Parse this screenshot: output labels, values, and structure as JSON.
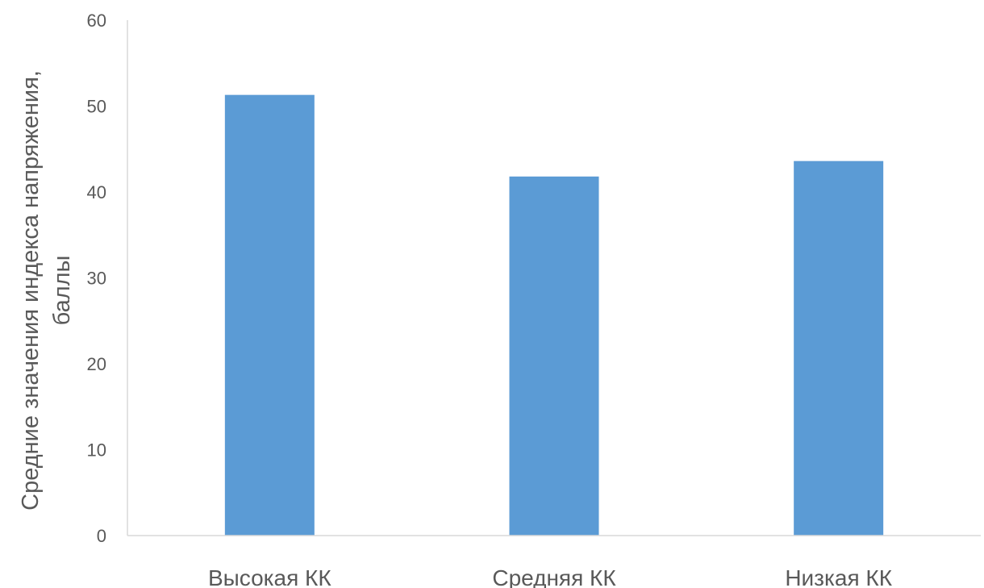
{
  "chart_data": {
    "type": "bar",
    "title": "",
    "xlabel": "",
    "ylabel_lines": [
      "Средние значения индекса напряжения,",
      "баллы"
    ],
    "categories": [
      "Высокая КК",
      "Средняя КК",
      "Низкая КК"
    ],
    "values": [
      51.3,
      41.8,
      43.6
    ],
    "ylim": [
      0,
      60
    ],
    "yticks": [
      0,
      10,
      20,
      30,
      40,
      50,
      60
    ],
    "grid": false,
    "legend": "none",
    "bar_color": "#5B9BD5",
    "axis_color": "#D9D9D9",
    "text_color": "#595959"
  }
}
